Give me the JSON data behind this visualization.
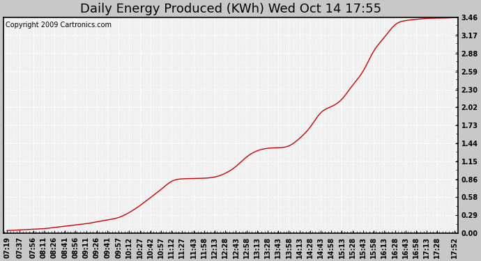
{
  "title": "Daily Energy Produced (KWh) Wed Oct 14 17:55",
  "copyright_text": "Copyright 2009 Cartronics.com",
  "line_color": "#cc0000",
  "fig_bg_color": "#c8c8c8",
  "plot_bg_color": "#f0f0f0",
  "grid_color": "#ffffff",
  "border_color": "#000000",
  "yticks": [
    0.0,
    0.29,
    0.58,
    0.86,
    1.15,
    1.44,
    1.73,
    2.02,
    2.3,
    2.59,
    2.88,
    3.17,
    3.46
  ],
  "xtick_labels": [
    "07:19",
    "07:37",
    "07:56",
    "08:11",
    "08:26",
    "08:41",
    "08:56",
    "09:11",
    "09:26",
    "09:41",
    "09:57",
    "10:12",
    "10:27",
    "10:42",
    "10:57",
    "11:12",
    "11:27",
    "11:43",
    "11:58",
    "12:13",
    "12:28",
    "12:43",
    "12:58",
    "13:13",
    "13:28",
    "13:43",
    "13:58",
    "14:13",
    "14:28",
    "14:43",
    "14:58",
    "15:13",
    "15:28",
    "15:43",
    "15:58",
    "16:13",
    "16:28",
    "16:43",
    "16:58",
    "17:13",
    "17:28",
    "17:52"
  ],
  "xdata_minutes": [
    439,
    457,
    476,
    491,
    506,
    521,
    536,
    551,
    566,
    581,
    597,
    612,
    627,
    642,
    657,
    672,
    687,
    703,
    718,
    733,
    748,
    763,
    778,
    793,
    808,
    823,
    838,
    853,
    868,
    883,
    898,
    913,
    928,
    943,
    958,
    973,
    988,
    1003,
    1018,
    1033,
    1048,
    1072
  ],
  "ydata": [
    0.04,
    0.05,
    0.06,
    0.07,
    0.09,
    0.11,
    0.13,
    0.15,
    0.18,
    0.21,
    0.25,
    0.33,
    0.44,
    0.57,
    0.7,
    0.83,
    0.87,
    0.875,
    0.88,
    0.9,
    0.96,
    1.07,
    1.22,
    1.32,
    1.36,
    1.37,
    1.4,
    1.52,
    1.7,
    1.93,
    2.03,
    2.15,
    2.37,
    2.6,
    2.92,
    3.14,
    3.34,
    3.41,
    3.43,
    3.445,
    3.45,
    3.46
  ],
  "ylim": [
    0.0,
    3.46
  ],
  "title_fontsize": 13,
  "tick_fontsize": 7,
  "copyright_fontsize": 7
}
